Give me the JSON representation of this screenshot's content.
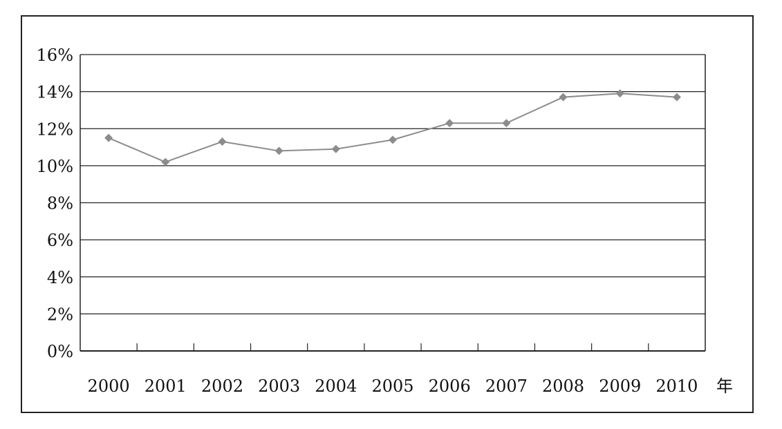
{
  "chart_data": {
    "type": "line",
    "title": "",
    "xlabel": "",
    "ylabel": "",
    "x_unit": "年",
    "categories": [
      "2000",
      "2001",
      "2002",
      "2003",
      "2004",
      "2005",
      "2006",
      "2007",
      "2008",
      "2009",
      "2010"
    ],
    "series": [
      {
        "values": [
          11.5,
          10.2,
          11.3,
          10.8,
          10.9,
          11.4,
          12.3,
          12.3,
          13.7,
          13.9,
          13.7
        ]
      }
    ],
    "ylim": [
      0,
      16
    ],
    "y_step": 2,
    "y_tick_labels": [
      "0%",
      "2%",
      "4%",
      "6%",
      "8%",
      "10%",
      "12%",
      "14%",
      "16%"
    ],
    "grid": "horizontal",
    "legend": "none",
    "colors": {
      "series": "#8c8c8c",
      "axis": "#222222",
      "grid": "#222222"
    }
  }
}
